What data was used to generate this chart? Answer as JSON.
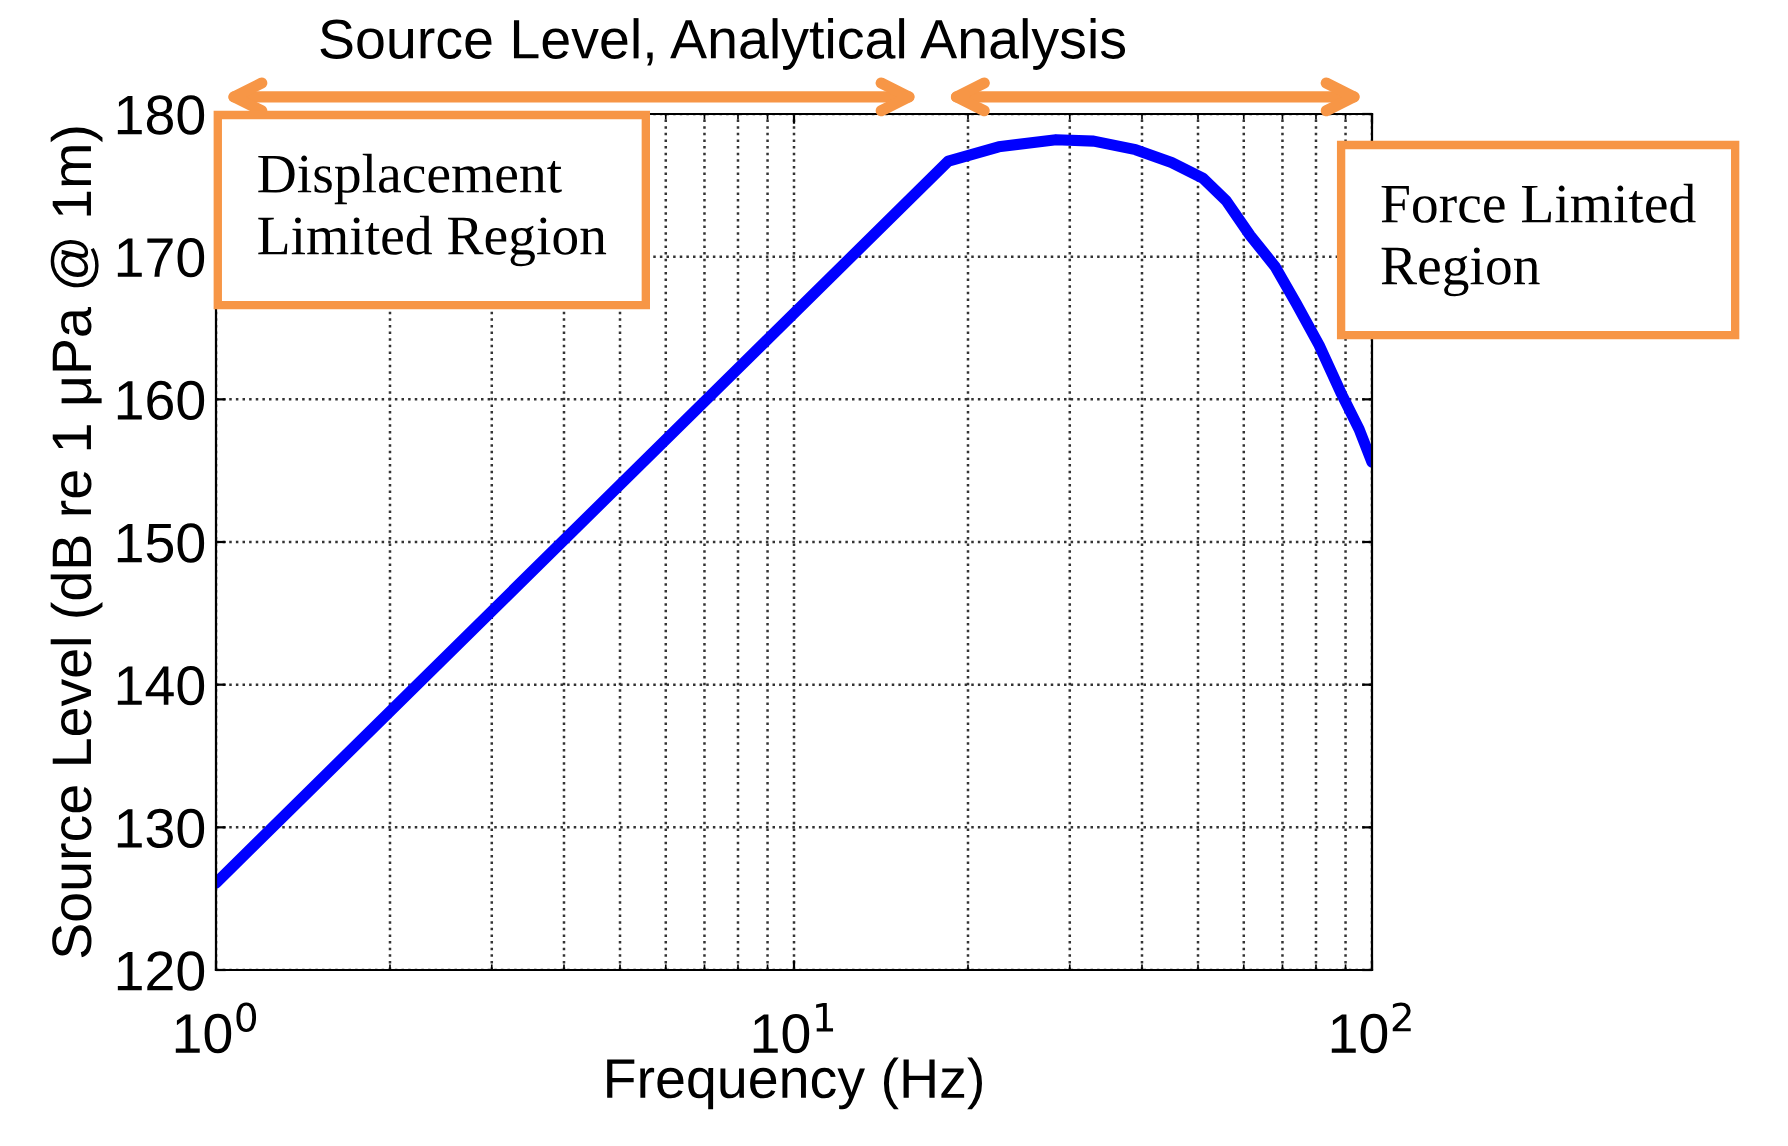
{
  "chart_data": {
    "type": "line",
    "title": "Source Level, Analytical Analysis",
    "xlabel": "Frequency (Hz)",
    "ylabel": "Source Level (dB re 1 μPa @ 1m)",
    "annotations": [
      "Displacement\nLimited Region",
      "Force Limited\nRegion"
    ],
    "x": [
      1,
      18.5,
      22.6,
      28.4,
      33,
      39,
      45,
      51,
      56,
      61.5,
      68,
      74,
      81,
      88.5,
      95,
      100
    ],
    "series": [
      {
        "color": "#0000ff",
        "values": [
          126.1,
          176.7,
          177.7,
          178.2,
          178.1,
          177.5,
          176.6,
          175.5,
          173.9,
          171.5,
          169.3,
          166.7,
          163.8,
          160.4,
          157.9,
          155.6
        ]
      }
    ],
    "log": "x",
    "xlim": [
      1,
      100
    ],
    "xticks": [
      {
        "value": 1,
        "label": "10$^{0}$"
      },
      {
        "value": 10,
        "label": "10$^{1}$"
      },
      {
        "value": 100,
        "label": "10$^{2}$"
      }
    ],
    "ylim": [
      120,
      180
    ],
    "yticks": [
      120,
      130,
      140,
      150,
      160,
      170,
      180
    ],
    "grid": true,
    "line_style": "solid",
    "marker": "none"
  }
}
